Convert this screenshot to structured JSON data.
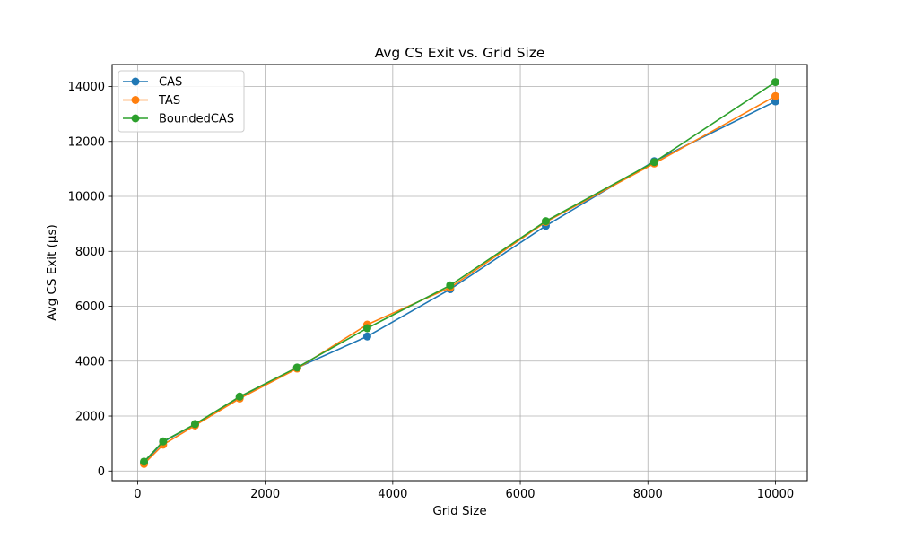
{
  "chart_data": {
    "type": "line",
    "title": "Avg CS Exit vs. Grid Size",
    "xlabel": "Grid Size",
    "ylabel": "Avg CS Exit (µs)",
    "xlim": [
      -400,
      10500
    ],
    "ylim": [
      -350,
      14800
    ],
    "xticks": [
      0,
      2000,
      4000,
      6000,
      8000,
      10000
    ],
    "yticks": [
      0,
      2000,
      4000,
      6000,
      8000,
      10000,
      12000,
      14000
    ],
    "grid": true,
    "legend_position": "upper left",
    "x": [
      100,
      400,
      900,
      1600,
      2500,
      3600,
      4900,
      6400,
      8100,
      10000
    ],
    "series": [
      {
        "name": "CAS",
        "color": "#1f77b4",
        "marker": "circle",
        "values": [
          300,
          1060,
          1700,
          2680,
          3760,
          4900,
          6620,
          8930,
          11280,
          13460
        ]
      },
      {
        "name": "TAS",
        "color": "#ff7f0e",
        "marker": "circle",
        "values": [
          260,
          960,
          1660,
          2640,
          3730,
          5330,
          6680,
          9070,
          11200,
          13650
        ]
      },
      {
        "name": "BoundedCAS",
        "color": "#2ca02c",
        "marker": "circle",
        "values": [
          340,
          1080,
          1710,
          2710,
          3770,
          5200,
          6760,
          9100,
          11250,
          14160
        ]
      }
    ]
  }
}
